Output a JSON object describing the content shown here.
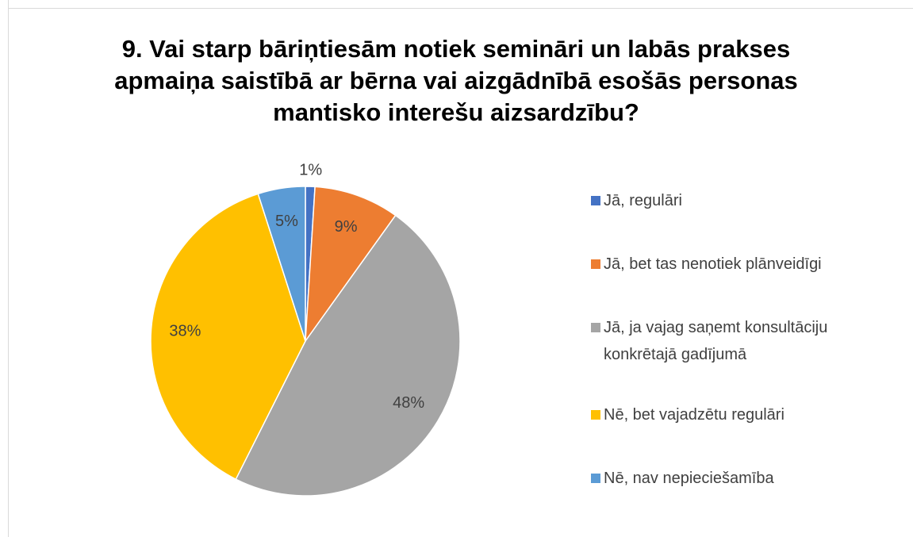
{
  "chart_data": {
    "type": "pie",
    "title": "9. Vai starp bāriņtiesām notiek semināri un labās prakses apmaiņa saistībā ar bērna vai aizgādnībā esošās personas mantisko interešu aizsardzību?",
    "categories": [
      "Jā, regulāri",
      "Jā, bet tas nenotiek plānveidīgi",
      "Jā, ja vajag saņemt konsultāciju konkrētajā gadījumā",
      "Nē, bet vajadzētu regulāri",
      "Nē, nav nepieciešamība"
    ],
    "values": [
      1,
      9,
      48,
      38,
      5
    ],
    "value_labels": [
      "1%",
      "9%",
      "48%",
      "38%",
      "5%"
    ],
    "colors": [
      "#4472c4",
      "#ed7d31",
      "#a5a5a5",
      "#ffc000",
      "#5b9bd5"
    ],
    "legend": "right"
  }
}
